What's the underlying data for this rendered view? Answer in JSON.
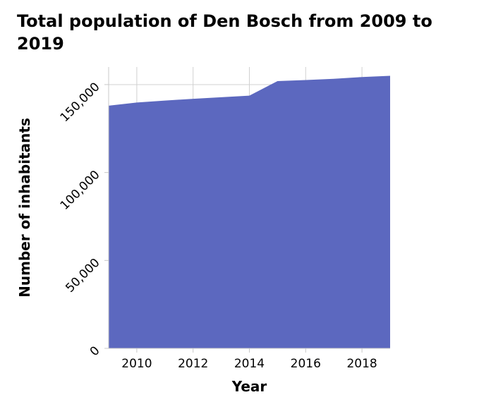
{
  "chart_data": {
    "type": "area",
    "title": "Total population of Den Bosch from 2009 to 2019",
    "xlabel": "Year",
    "ylabel": "Number of inhabitants",
    "x": [
      2009,
      2010,
      2011,
      2012,
      2013,
      2014,
      2015,
      2016,
      2017,
      2018,
      2019
    ],
    "values": [
      138000,
      139800,
      140900,
      141900,
      142800,
      143700,
      152000,
      152600,
      153300,
      154300,
      155000
    ],
    "xlim": [
      2009,
      2019
    ],
    "ylim": [
      0,
      160000
    ],
    "x_ticks": [
      2010,
      2012,
      2014,
      2016,
      2018
    ],
    "x_tick_labels": [
      "2010",
      "2012",
      "2014",
      "2016",
      "2018"
    ],
    "y_ticks": [
      0,
      50000,
      100000,
      150000
    ],
    "y_tick_labels": [
      "0",
      "50,000",
      "100,000",
      "150,000"
    ],
    "grid": true,
    "legend": "none",
    "fill_color": "#5c68bf"
  }
}
